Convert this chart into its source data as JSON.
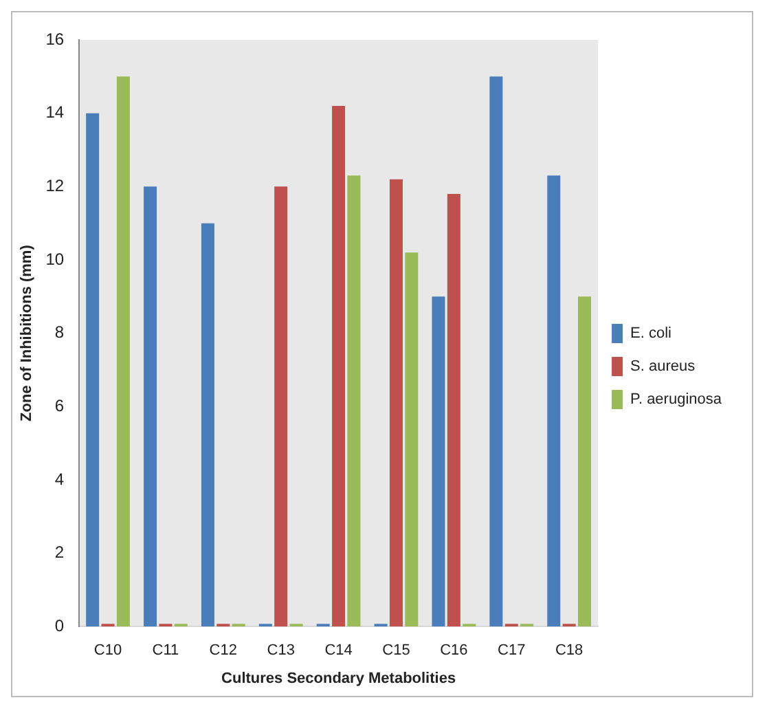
{
  "chart_data": {
    "type": "bar",
    "xlabel": "Cultures Secondary Metabolities",
    "ylabel": "Zone of Inhibitions (mm)",
    "categories": [
      "C10",
      "C11",
      "C12",
      "C13",
      "C14",
      "C15",
      "C16",
      "C17",
      "C18"
    ],
    "series": [
      {
        "name": "E. coli",
        "color": "#4a7ebb",
        "values": [
          14,
          12,
          11,
          0,
          0,
          0,
          9,
          15,
          12.3
        ]
      },
      {
        "name": "S. aureus",
        "color": "#c0504d",
        "values": [
          0,
          0,
          0,
          12,
          14.2,
          12.2,
          11.8,
          0,
          0
        ]
      },
      {
        "name": "P. aeruginosa",
        "color": "#9bbb59",
        "values": [
          15,
          0,
          0,
          0,
          12.3,
          10.2,
          0,
          0,
          9
        ]
      }
    ],
    "ylim": [
      0,
      16
    ],
    "yticks": [
      0,
      2,
      4,
      6,
      8,
      10,
      12,
      14,
      16
    ],
    "grid": false,
    "legend": "right"
  }
}
